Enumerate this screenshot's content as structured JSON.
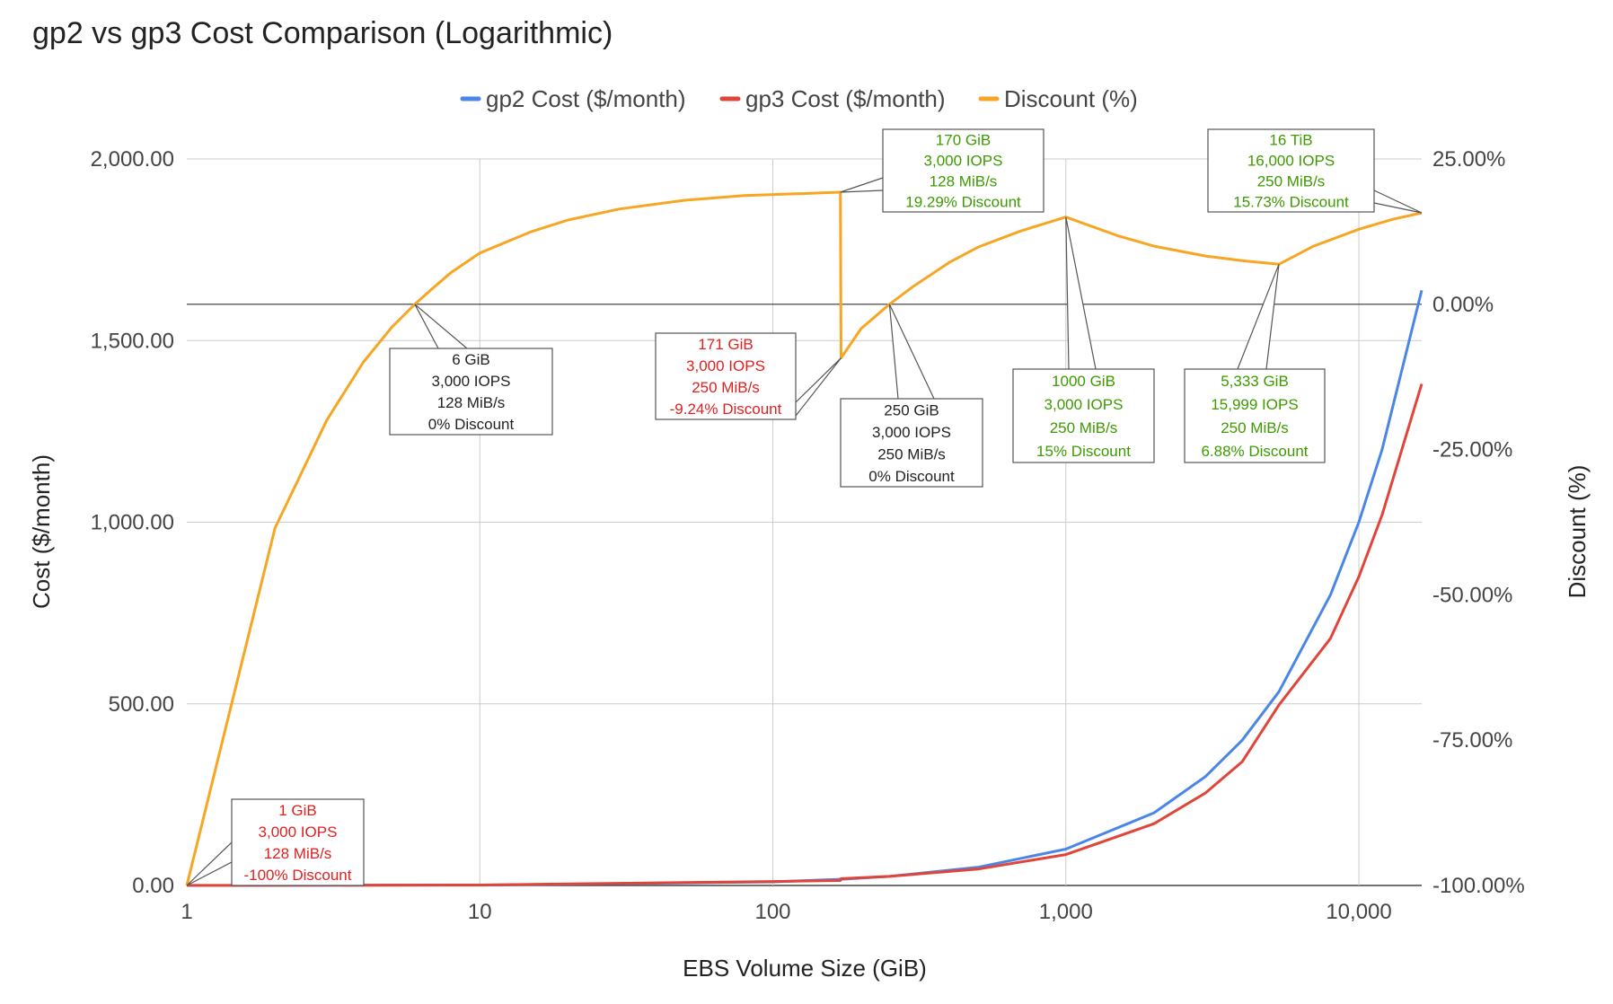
{
  "chart_data": {
    "type": "line",
    "title": "gp2 vs gp3 Cost Comparison (Logarithmic)",
    "xlabel": "EBS Volume Size (GiB)",
    "ylabel": "Cost ($/month)",
    "y2label": "Discount (%)",
    "xscale": "log",
    "xlim": [
      1,
      16384
    ],
    "ylim": [
      0,
      2000
    ],
    "y2lim": [
      -100,
      25
    ],
    "x_ticks": [
      1,
      10,
      100,
      1000,
      10000
    ],
    "x_tick_labels": [
      "1",
      "10",
      "100",
      "1,000",
      "10,000"
    ],
    "y_ticks": [
      0,
      500,
      1000,
      1500,
      2000
    ],
    "y_tick_labels": [
      "0.00",
      "500.00",
      "1,000.00",
      "1,500.00",
      "2,000.00"
    ],
    "y2_ticks": [
      -100,
      -75,
      -50,
      -25,
      0,
      25
    ],
    "y2_tick_labels": [
      "-100.00%",
      "-75.00%",
      "-50.00%",
      "-25.00%",
      "0.00%",
      "25.00%"
    ],
    "grid": true,
    "legend_position": "top",
    "series": [
      {
        "name": "gp2 Cost ($/month)",
        "axis": "left",
        "color": "#4a86e8",
        "x": [
          1,
          10,
          100,
          170,
          171,
          250,
          500,
          1000,
          2000,
          3000,
          4000,
          5333,
          8000,
          10000,
          12000,
          16384
        ],
        "y": [
          0.1,
          1,
          10,
          17,
          17.1,
          25,
          50,
          100,
          200,
          300,
          400,
          533.3,
          800,
          1000,
          1200,
          1638.4
        ]
      },
      {
        "name": "gp3 Cost ($/month)",
        "axis": "left",
        "color": "#e0453a",
        "x": [
          1,
          10,
          100,
          170,
          171,
          250,
          500,
          1000,
          2000,
          3000,
          4000,
          5333,
          8000,
          10000,
          12000,
          16384
        ],
        "y": [
          0.2,
          1.2,
          11,
          13.7,
          18.68,
          25,
          45,
          85,
          170,
          255,
          341,
          496.6,
          680,
          850,
          1020,
          1380.7
        ]
      },
      {
        "name": "Discount (%)",
        "axis": "right",
        "color": "#f6a623",
        "x": [
          1,
          2,
          3,
          4,
          5,
          6,
          7,
          8,
          10,
          15,
          20,
          30,
          50,
          80,
          120,
          170,
          171,
          200,
          250,
          300,
          400,
          500,
          700,
          1000,
          1500,
          2000,
          3000,
          4000,
          5333,
          7000,
          10000,
          13000,
          16384
        ],
        "y": [
          -100,
          -38.5,
          -20.0,
          -10.0,
          -4.0,
          0.0,
          3.0,
          5.5,
          8.8,
          12.5,
          14.5,
          16.4,
          17.9,
          18.7,
          19.0,
          19.29,
          -9.24,
          -4.2,
          0.0,
          3.0,
          7.2,
          9.8,
          12.6,
          15.0,
          11.8,
          10.0,
          8.3,
          7.5,
          6.88,
          10.0,
          12.9,
          14.6,
          15.73
        ]
      }
    ],
    "annotations": [
      {
        "series": 2,
        "x": 1,
        "y": -100,
        "color": "#e02020",
        "lines": [
          "1 GiB",
          "3,000 IOPS",
          "128 MiB/s",
          "-100% Discount"
        ]
      },
      {
        "series": 2,
        "x": 6,
        "y": 0,
        "color": "#222222",
        "lines": [
          "6 GiB",
          "3,000 IOPS",
          "128 MiB/s",
          "0% Discount"
        ]
      },
      {
        "series": 2,
        "x": 170,
        "y": 19.29,
        "color": "#3d9a00",
        "lines": [
          "170 GiB",
          "3,000 IOPS",
          "128 MiB/s",
          "19.29% Discount"
        ]
      },
      {
        "series": 2,
        "x": 171,
        "y": -9.24,
        "color": "#e02020",
        "lines": [
          "171 GiB",
          "3,000 IOPS",
          "250 MiB/s",
          "-9.24% Discount"
        ]
      },
      {
        "series": 2,
        "x": 250,
        "y": 0,
        "color": "#222222",
        "lines": [
          "250 GiB",
          "3,000 IOPS",
          "250 MiB/s",
          "0% Discount"
        ]
      },
      {
        "series": 2,
        "x": 1000,
        "y": 15,
        "color": "#3d9a00",
        "lines": [
          "1000 GiB",
          "3,000 IOPS",
          "250 MiB/s",
          "15% Discount"
        ]
      },
      {
        "series": 2,
        "x": 5333,
        "y": 6.88,
        "color": "#3d9a00",
        "lines": [
          "5,333 GiB",
          "15,999 IOPS",
          "250 MiB/s",
          "6.88% Discount"
        ]
      },
      {
        "series": 2,
        "x": 16384,
        "y": 15.73,
        "color": "#3d9a00",
        "lines": [
          "16 TiB",
          "16,000 IOPS",
          "250 MiB/s",
          "15.73% Discount"
        ]
      }
    ]
  }
}
